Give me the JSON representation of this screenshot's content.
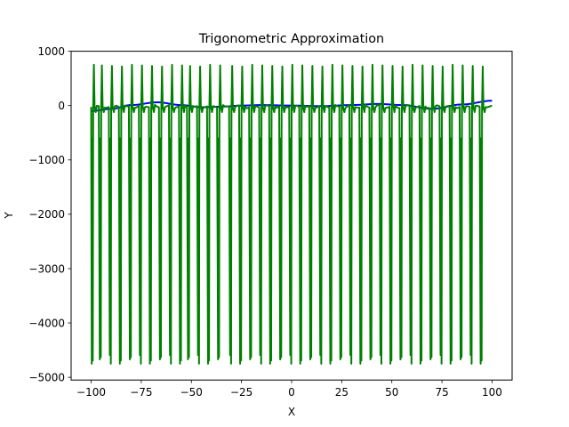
{
  "chart_data": {
    "type": "line",
    "title": "Trigonometric Approximation",
    "xlabel": "X",
    "ylabel": "Y",
    "xlim": [
      -110,
      110
    ],
    "ylim": [
      -5050,
      1000
    ],
    "xticks": [
      -100,
      -75,
      -50,
      -25,
      0,
      25,
      50,
      75,
      100
    ],
    "xtick_labels": [
      "−100",
      "−75",
      "−50",
      "−25",
      "0",
      "25",
      "50",
      "75",
      "100"
    ],
    "yticks": [
      -5000,
      -4000,
      -3000,
      -2000,
      -1000,
      0,
      1000
    ],
    "ytick_labels": [
      "−5000",
      "−4000",
      "−3000",
      "−2000",
      "−1000",
      "0",
      "1000"
    ],
    "grid": false,
    "series": [
      {
        "color": "#0000ff",
        "x_range": [
          -100,
          100
        ],
        "approx_values": {
          "x": [
            -100,
            -90,
            -80,
            -67,
            -55,
            -45,
            -35,
            -25,
            -15,
            0,
            15,
            30,
            43,
            55,
            70,
            85,
            100
          ],
          "y": [
            -100,
            -60,
            10,
            60,
            10,
            -30,
            -20,
            0,
            10,
            0,
            -10,
            10,
            30,
            10,
            -60,
            20,
            90
          ]
        }
      },
      {
        "color": "#008000",
        "x_range": [
          -100,
          100
        ],
        "spike_x": [
          -99,
          -95,
          -90,
          -85,
          -80,
          -75,
          -70,
          -65,
          -60,
          -55,
          -51,
          -46,
          -41,
          -36,
          -30,
          -25,
          -20,
          -15,
          -10,
          -5,
          0,
          5,
          10,
          15,
          20,
          25,
          30,
          35,
          40,
          45,
          50,
          55,
          60,
          65,
          70,
          75,
          80,
          85,
          90,
          95
        ],
        "max": 750,
        "min": -4750
      }
    ]
  }
}
